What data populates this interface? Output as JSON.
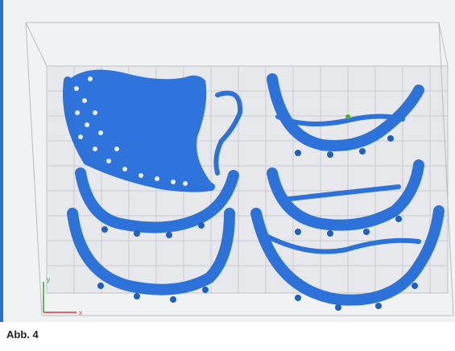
{
  "caption": "Abb. 4",
  "axes": {
    "y": "y",
    "x": "x"
  }
}
